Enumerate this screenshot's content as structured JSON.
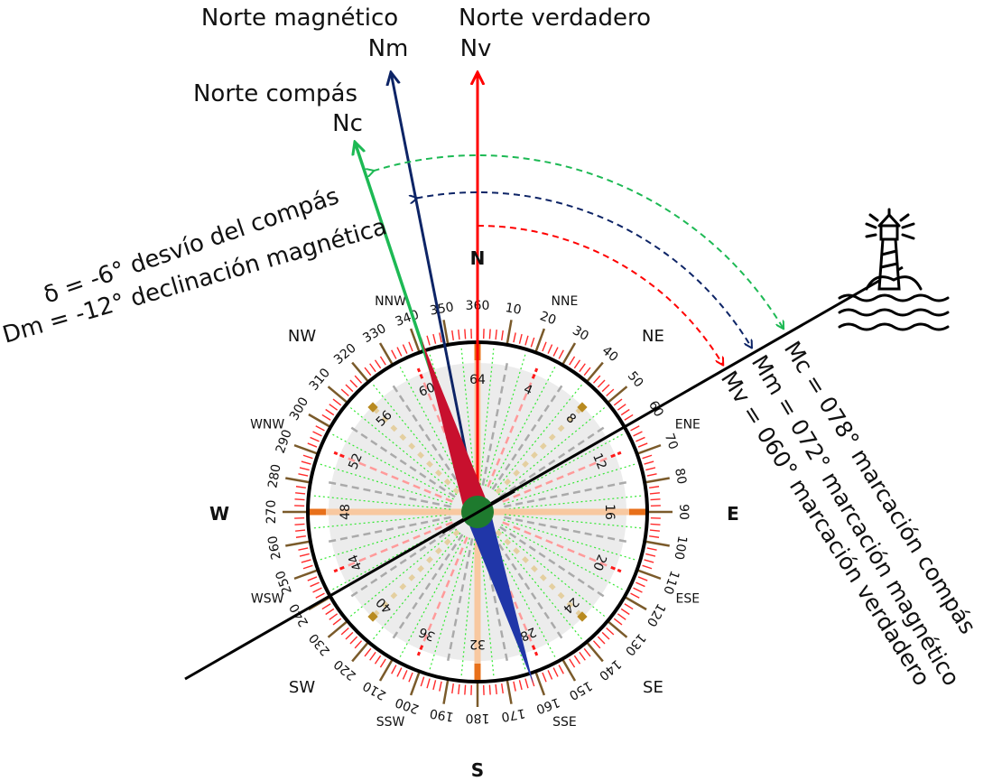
{
  "north_labels": {
    "magnetic_title": "Norte magnético",
    "magnetic_abbr": "Nm",
    "true_title": "Norte verdadero",
    "true_abbr": "Nv",
    "compass_title": "Norte compás",
    "compass_abbr": "Nc"
  },
  "annotations": {
    "deviation": "δ = -6° desvío del compás",
    "declination": "Dm = -12° declinación magnética",
    "compass_bearing": "Mc = 078° marcación compás",
    "magnetic_bearing": "Mm = 072° marcación magnético",
    "true_bearing": "Mv = 060° marcación verdadero"
  },
  "cardinals": {
    "n": "N",
    "e": "E",
    "s": "S",
    "w": "W"
  },
  "intercardinals": [
    "NNE",
    "NE",
    "ENE",
    "ESE",
    "SE",
    "SSE",
    "SSW",
    "SW",
    "WSW",
    "WNW",
    "NW",
    "NNW"
  ],
  "degree_labels": [
    "360",
    "10",
    "20",
    "30",
    "40",
    "50",
    "60",
    "70",
    "80",
    "90",
    "100",
    "110",
    "120",
    "130",
    "140",
    "150",
    "160",
    "170",
    "180",
    "190",
    "200",
    "210",
    "220",
    "230",
    "240",
    "250",
    "260",
    "270",
    "280",
    "290",
    "300",
    "310",
    "320",
    "330",
    "340",
    "350"
  ],
  "point_labels": [
    "64",
    "4",
    "8",
    "12",
    "16",
    "20",
    "24",
    "28",
    "32",
    "36",
    "40",
    "44",
    "48",
    "52",
    "56",
    "60"
  ],
  "values": {
    "declination_deg": -12,
    "deviation_deg": -6,
    "true_bearing_deg": 60,
    "magnetic_bearing_deg": 72,
    "compass_bearing_deg": 78
  },
  "colors": {
    "true_north": "#ff0000",
    "magnetic_north": "#0d2466",
    "compass_north": "#1db954",
    "bearing_line": "#000000",
    "needle_north": "#c8102e",
    "needle_south": "#2036a8",
    "needle_hub": "#1e7a2e"
  },
  "icons": {
    "landmark": "lighthouse-icon"
  }
}
